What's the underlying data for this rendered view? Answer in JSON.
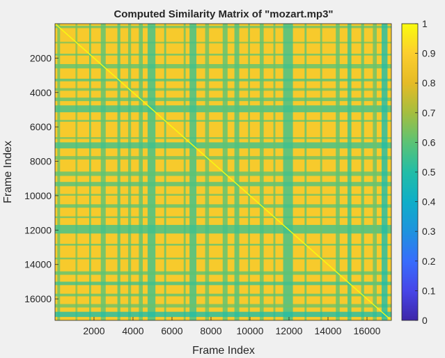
{
  "chart_data": {
    "type": "heatmap",
    "title": "Computed Similarity Matrix of \"mozart.mp3\"",
    "xlabel": "Frame Index",
    "ylabel": "Frame Index",
    "xlim": [
      1,
      17250
    ],
    "ylim": [
      1,
      17250
    ],
    "y_reversed": true,
    "x_ticks": [
      2000,
      4000,
      6000,
      8000,
      10000,
      12000,
      14000,
      16000
    ],
    "y_ticks": [
      2000,
      4000,
      6000,
      8000,
      10000,
      12000,
      14000,
      16000
    ],
    "colorbar": {
      "colormap": "parula",
      "clim": [
        0,
        1
      ],
      "ticks": [
        0,
        0.1,
        0.2,
        0.3,
        0.4,
        0.5,
        0.6,
        0.7,
        0.8,
        0.9,
        1
      ],
      "placement": "right"
    },
    "diagonal_value": 1,
    "low_similarity_bands": [
      {
        "start": 120,
        "end": 260,
        "level": 0.62
      },
      {
        "start": 1050,
        "end": 1150,
        "level": 0.65
      },
      {
        "start": 1750,
        "end": 1850,
        "level": 0.6
      },
      {
        "start": 2350,
        "end": 2600,
        "level": 0.6
      },
      {
        "start": 3200,
        "end": 3350,
        "level": 0.58
      },
      {
        "start": 3750,
        "end": 3900,
        "level": 0.62
      },
      {
        "start": 4300,
        "end": 4500,
        "level": 0.6
      },
      {
        "start": 4750,
        "end": 5150,
        "level": 0.55
      },
      {
        "start": 5600,
        "end": 5700,
        "level": 0.6
      },
      {
        "start": 6600,
        "end": 6700,
        "level": 0.62
      },
      {
        "start": 6900,
        "end": 7250,
        "level": 0.55
      },
      {
        "start": 7700,
        "end": 7900,
        "level": 0.62
      },
      {
        "start": 8600,
        "end": 8850,
        "level": 0.6
      },
      {
        "start": 9200,
        "end": 9450,
        "level": 0.58
      },
      {
        "start": 9900,
        "end": 10000,
        "level": 0.62
      },
      {
        "start": 10500,
        "end": 10700,
        "level": 0.6
      },
      {
        "start": 11200,
        "end": 11300,
        "level": 0.62
      },
      {
        "start": 11700,
        "end": 12200,
        "level": 0.55
      },
      {
        "start": 12800,
        "end": 12900,
        "level": 0.6
      },
      {
        "start": 13600,
        "end": 13700,
        "level": 0.62
      },
      {
        "start": 14400,
        "end": 14600,
        "level": 0.6
      },
      {
        "start": 15000,
        "end": 15200,
        "level": 0.55
      },
      {
        "start": 15700,
        "end": 15850,
        "level": 0.6
      },
      {
        "start": 16300,
        "end": 16500,
        "level": 0.62
      },
      {
        "start": 16750,
        "end": 17050,
        "level": 0.5
      }
    ],
    "background_level": 0.88
  }
}
